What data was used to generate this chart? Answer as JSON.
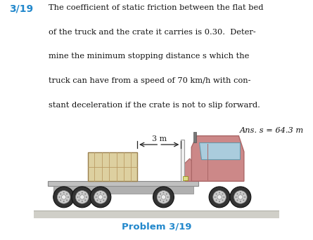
{
  "title_num": "3/19",
  "title_num_color": "#2288cc",
  "problem_text_lines": [
    "The coefficient of static friction between the flat bed",
    "of the truck and the crate it carries is 0.30.  Deter-",
    "mine the minimum stopping distance s which the",
    "truck can have from a speed of 70 km/h with con-",
    "stant deceleration if the crate is not to slip forward."
  ],
  "ans_text": "Ans. s = 64.3 m",
  "problem_label": "Problem 3/19",
  "problem_label_color": "#2288cc",
  "bg_color": "#ffffff",
  "ground_color": "#d0cfc8",
  "ground_line_color": "#b0b0a8",
  "flatbed_color": "#c0c0c0",
  "flatbed_edge": "#888888",
  "crate_face_color": "#ddd0a0",
  "crate_edge_color": "#9a8050",
  "crate_line_color": "#b89860",
  "truck_cab_color": "#cc8888",
  "truck_cab_dark": "#aa6666",
  "truck_cab_light": "#e0a0a0",
  "truck_white": "#f0f0f0",
  "truck_window": "#aaccdd",
  "truck_window_edge": "#6699aa",
  "wheel_tire": "#333333",
  "wheel_rim": "#cccccc",
  "wheel_hub": "#eeeeee",
  "wheel_bolt": "#888888",
  "dim_color": "#222222",
  "dim_label": "3 m",
  "text_color": "#111111",
  "exhaust_color": "#777777",
  "frame_color": "#999999"
}
